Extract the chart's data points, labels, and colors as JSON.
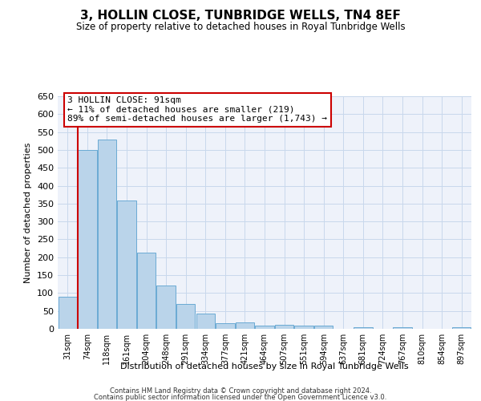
{
  "title": "3, HOLLIN CLOSE, TUNBRIDGE WELLS, TN4 8EF",
  "subtitle": "Size of property relative to detached houses in Royal Tunbridge Wells",
  "xlabel": "Distribution of detached houses by size in Royal Tunbridge Wells",
  "ylabel": "Number of detached properties",
  "footnote1": "Contains HM Land Registry data © Crown copyright and database right 2024.",
  "footnote2": "Contains public sector information licensed under the Open Government Licence v3.0.",
  "annotation_line1": "3 HOLLIN CLOSE: 91sqm",
  "annotation_line2": "← 11% of detached houses are smaller (219)",
  "annotation_line3": "89% of semi-detached houses are larger (1,743) →",
  "bar_color": "#bad4ea",
  "bar_edge_color": "#6aaad4",
  "marker_line_color": "#cc0000",
  "categories": [
    "31sqm",
    "74sqm",
    "118sqm",
    "161sqm",
    "204sqm",
    "248sqm",
    "291sqm",
    "334sqm",
    "377sqm",
    "421sqm",
    "464sqm",
    "507sqm",
    "551sqm",
    "594sqm",
    "637sqm",
    "681sqm",
    "724sqm",
    "767sqm",
    "810sqm",
    "854sqm",
    "897sqm"
  ],
  "values": [
    90,
    500,
    528,
    358,
    212,
    122,
    70,
    42,
    15,
    19,
    10,
    12,
    10,
    8,
    0,
    5,
    0,
    4,
    0,
    0,
    4
  ],
  "ylim": [
    0,
    650
  ],
  "yticks": [
    0,
    50,
    100,
    150,
    200,
    250,
    300,
    350,
    400,
    450,
    500,
    550,
    600,
    650
  ],
  "marker_bar_index": 1,
  "figsize": [
    6.0,
    5.0
  ],
  "dpi": 100
}
